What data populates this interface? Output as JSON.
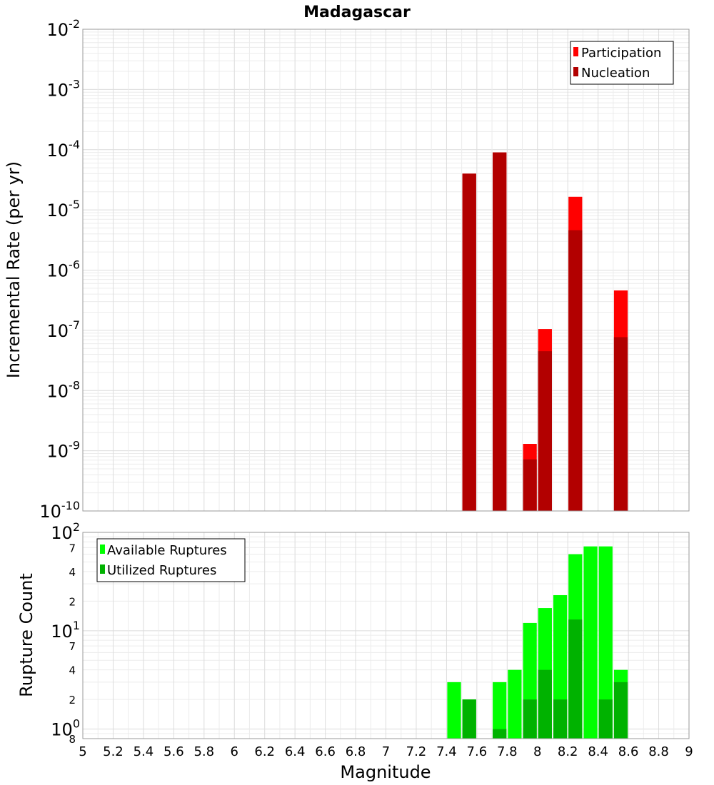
{
  "chart_data": [
    {
      "type": "bar",
      "title": "Madagascar",
      "xlabel": "",
      "ylabel": "Incremental Rate (per yr)",
      "xlim": [
        5,
        9
      ],
      "ylim": [
        1e-10,
        0.01
      ],
      "yscale": "log",
      "bar_width": 0.1,
      "grid": true,
      "legend_position": "top-right",
      "x_ticks": [
        "5",
        "5.2",
        "5.4",
        "5.6",
        "5.8",
        "6",
        "6.2",
        "6.4",
        "6.6",
        "6.8",
        "7",
        "7.2",
        "7.4",
        "7.6",
        "7.8",
        "8",
        "8.2",
        "8.4",
        "8.6",
        "8.8",
        "9"
      ],
      "y_ticks": [
        {
          "value": 0.01,
          "base": "10",
          "exp": "-2"
        },
        {
          "value": 0.001,
          "base": "10",
          "exp": "-3"
        },
        {
          "value": 0.0001,
          "base": "10",
          "exp": "-4"
        },
        {
          "value": 1e-05,
          "base": "10",
          "exp": "-5"
        },
        {
          "value": 1e-06,
          "base": "10",
          "exp": "-6"
        },
        {
          "value": 1e-07,
          "base": "10",
          "exp": "-7"
        },
        {
          "value": 1e-08,
          "base": "10",
          "exp": "-8"
        },
        {
          "value": 1e-09,
          "base": "10",
          "exp": "-9"
        },
        {
          "value": 1e-10,
          "base": "10",
          "exp": "-10"
        }
      ],
      "series": [
        {
          "name": "Participation",
          "color": "#ff0000",
          "points": [
            [
              7.55,
              4e-05
            ],
            [
              7.75,
              9e-05
            ],
            [
              7.95,
              1.3e-09
            ],
            [
              8.05,
              1.05e-07
            ],
            [
              8.25,
              1.65e-05
            ],
            [
              8.55,
              4.6e-07
            ]
          ]
        },
        {
          "name": "Nucleation",
          "color": "#b20000",
          "points": [
            [
              7.55,
              4e-05
            ],
            [
              7.75,
              9e-05
            ],
            [
              7.95,
              7.2e-10
            ],
            [
              8.05,
              4.5e-08
            ],
            [
              8.25,
              4.6e-06
            ],
            [
              8.55,
              7.7e-08
            ]
          ]
        }
      ]
    },
    {
      "type": "bar",
      "title": "",
      "xlabel": "Magnitude",
      "ylabel": "Rupture Count",
      "xlim": [
        5,
        9
      ],
      "ylim": [
        0.8,
        100
      ],
      "yscale": "log",
      "bar_width": 0.1,
      "grid": true,
      "legend_position": "top-left",
      "x_ticks": [
        "5",
        "5.2",
        "5.4",
        "5.6",
        "5.8",
        "6",
        "6.2",
        "6.4",
        "6.6",
        "6.8",
        "7",
        "7.2",
        "7.4",
        "7.6",
        "7.8",
        "8",
        "8.2",
        "8.4",
        "8.6",
        "8.8",
        "9"
      ],
      "y_major_ticks": [
        {
          "value": 100,
          "base": "10",
          "exp": "2"
        },
        {
          "value": 10,
          "base": "10",
          "exp": "1"
        },
        {
          "value": 1,
          "base": "10",
          "exp": "0"
        }
      ],
      "y_minor_ticks": [
        {
          "value": 70,
          "label": "7"
        },
        {
          "value": 40,
          "label": "4"
        },
        {
          "value": 20,
          "label": "2"
        },
        {
          "value": 7,
          "label": "7"
        },
        {
          "value": 4,
          "label": "4"
        },
        {
          "value": 2,
          "label": "2"
        },
        {
          "value": 0.8,
          "label": "8"
        }
      ],
      "series": [
        {
          "name": "Available Ruptures",
          "color": "#00ff00",
          "points": [
            [
              7.45,
              3
            ],
            [
              7.55,
              2
            ],
            [
              7.75,
              3
            ],
            [
              7.85,
              4
            ],
            [
              7.95,
              12
            ],
            [
              8.05,
              17
            ],
            [
              8.15,
              23
            ],
            [
              8.25,
              60
            ],
            [
              8.35,
              72
            ],
            [
              8.45,
              72
            ],
            [
              8.55,
              4
            ]
          ]
        },
        {
          "name": "Utilized Ruptures",
          "color": "#00b200",
          "points": [
            [
              7.55,
              2
            ],
            [
              7.75,
              1
            ],
            [
              7.95,
              2
            ],
            [
              8.05,
              4
            ],
            [
              8.15,
              2
            ],
            [
              8.25,
              13
            ],
            [
              8.45,
              2
            ],
            [
              8.55,
              3
            ]
          ]
        }
      ]
    }
  ]
}
